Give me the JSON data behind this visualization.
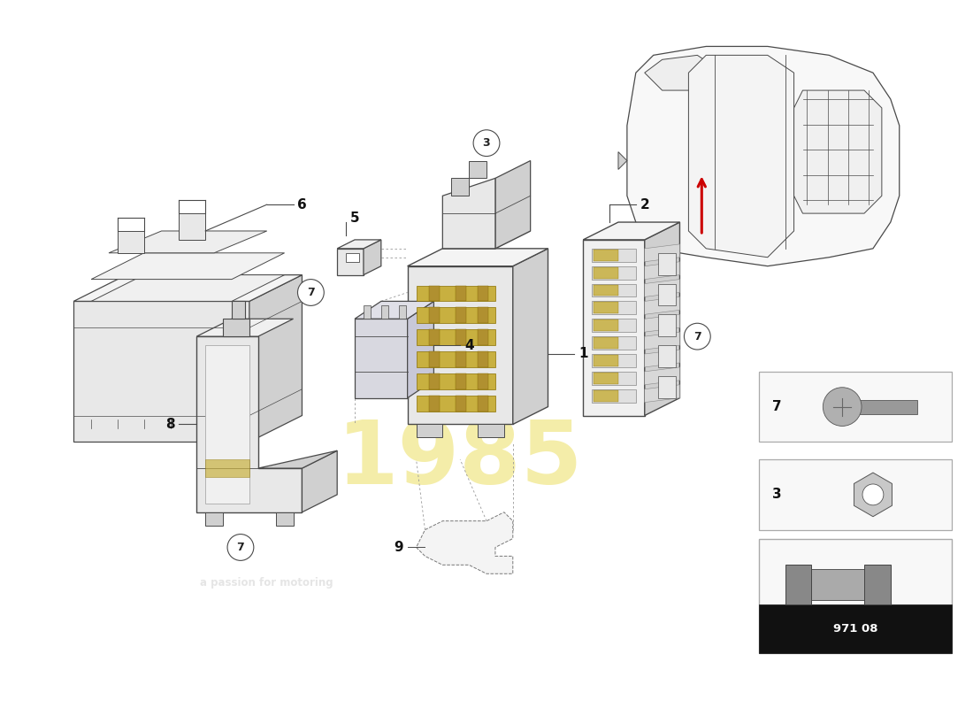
{
  "background_color": "#ffffff",
  "line_color": "#4a4a4a",
  "gold_color": "#c8b040",
  "light_gray": "#e8e8e8",
  "mid_gray": "#d0d0d0",
  "dark_gray": "#aaaaaa",
  "watermark_1985_color": "#e8d840",
  "watermark_1985_alpha": 0.45,
  "eurosparts_color": "#cccccc",
  "eurosparts_alpha": 0.5,
  "part_number": "971 08",
  "label_fontsize": 11,
  "circle_label_fontsize": 9,
  "red_arrow_color": "#cc0000"
}
